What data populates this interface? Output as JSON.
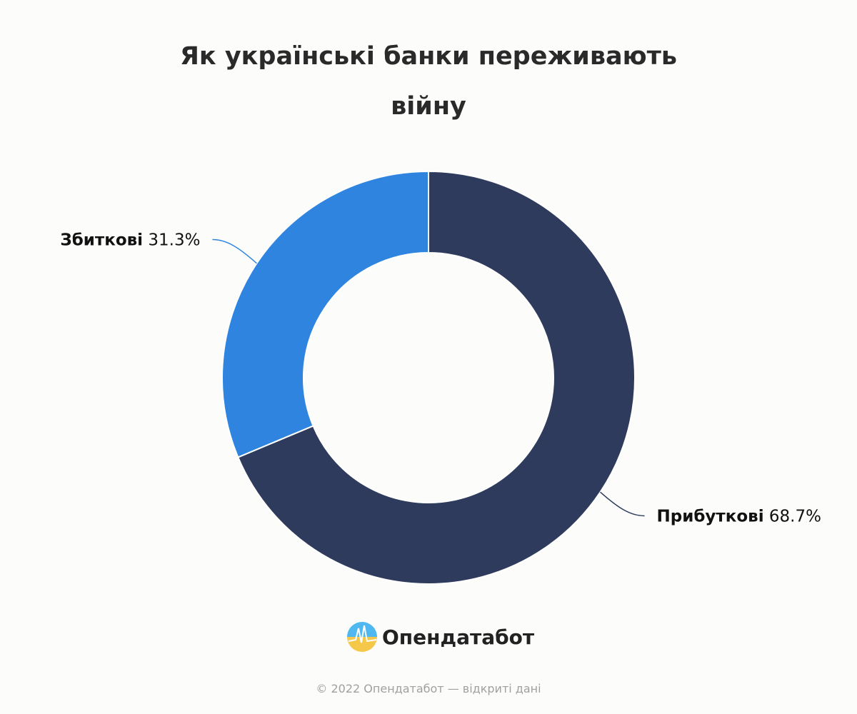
{
  "chart_data": {
    "type": "donut",
    "title": "Як українські банки переживають війну",
    "categories": [
      "Прибуткові",
      "Збиткові"
    ],
    "values": [
      68.7,
      31.3
    ],
    "value_labels": [
      "68.7%",
      "31.3%"
    ],
    "colors": [
      "#2e3b5c",
      "#2e84de"
    ]
  },
  "brand": "Опендатабот",
  "footer": "© 2022 Опендатабот — відкриті дані"
}
